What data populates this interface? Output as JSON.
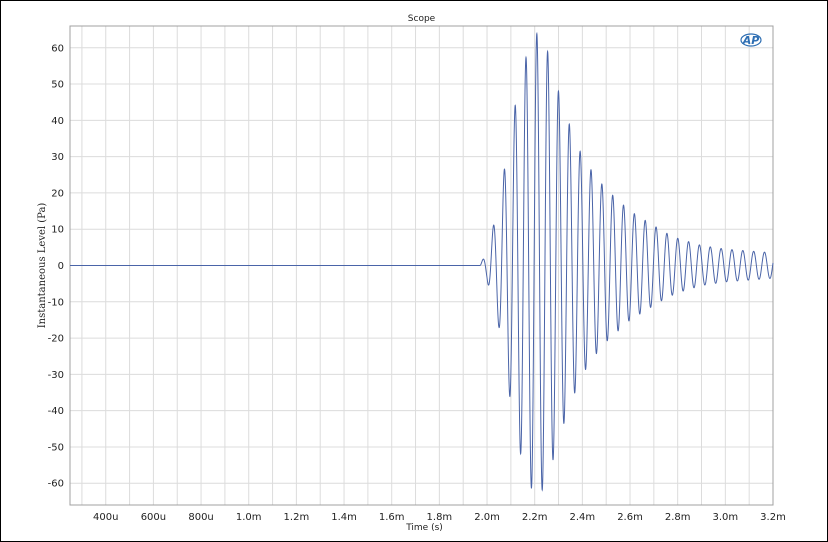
{
  "chart_data": {
    "type": "line",
    "title": "Scope",
    "xlabel": "Time (s)",
    "ylabel": "Instantaneous Level (Pa)",
    "logo_text": "AP",
    "xlim": [
      0.00025,
      0.0032
    ],
    "ylim": [
      -66,
      66
    ],
    "x_ticks": [
      {
        "value": 0.0004,
        "label": "400u"
      },
      {
        "value": 0.0006,
        "label": "600u"
      },
      {
        "value": 0.0008,
        "label": "800u"
      },
      {
        "value": 0.001,
        "label": "1.0m"
      },
      {
        "value": 0.0012,
        "label": "1.2m"
      },
      {
        "value": 0.0014,
        "label": "1.4m"
      },
      {
        "value": 0.0016,
        "label": "1.6m"
      },
      {
        "value": 0.0018,
        "label": "1.8m"
      },
      {
        "value": 0.002,
        "label": "2.0m"
      },
      {
        "value": 0.0022,
        "label": "2.2m"
      },
      {
        "value": 0.0024,
        "label": "2.4m"
      },
      {
        "value": 0.0026,
        "label": "2.6m"
      },
      {
        "value": 0.0028,
        "label": "2.8m"
      },
      {
        "value": 0.003,
        "label": "3.0m"
      },
      {
        "value": 0.0032,
        "label": "3.2m"
      }
    ],
    "y_ticks": [
      {
        "value": 60,
        "label": "60"
      },
      {
        "value": 50,
        "label": "50"
      },
      {
        "value": 40,
        "label": "40"
      },
      {
        "value": 30,
        "label": "30"
      },
      {
        "value": 20,
        "label": "20"
      },
      {
        "value": 10,
        "label": "10"
      },
      {
        "value": 0,
        "label": "0"
      },
      {
        "value": -10,
        "label": "-10"
      },
      {
        "value": -20,
        "label": "-20"
      },
      {
        "value": -30,
        "label": "-30"
      },
      {
        "value": -40,
        "label": "-40"
      },
      {
        "value": -50,
        "label": "-50"
      },
      {
        "value": -60,
        "label": "-60"
      }
    ],
    "grid": true,
    "x_minor_grid_step": 0.0001,
    "series": [
      {
        "color": "#4a64a8",
        "description_points": [
          {
            "x": 0.00025,
            "y": 0
          },
          {
            "x": 0.00197,
            "y": 0
          },
          {
            "x": 0.002,
            "y": 4
          },
          {
            "x": 0.00205,
            "y": 17
          },
          {
            "x": 0.0021,
            "y": 38
          },
          {
            "x": 0.00215,
            "y": 55
          },
          {
            "x": 0.00219,
            "y": 62
          },
          {
            "x": 0.00221,
            "y": 64
          },
          {
            "x": 0.00225,
            "y": 60
          },
          {
            "x": 0.0023,
            "y": 48
          },
          {
            "x": 0.00235,
            "y": 38
          },
          {
            "x": 0.0024,
            "y": 30
          },
          {
            "x": 0.00245,
            "y": 25
          },
          {
            "x": 0.0025,
            "y": 21
          },
          {
            "x": 0.00255,
            "y": 18
          },
          {
            "x": 0.0026,
            "y": 15
          },
          {
            "x": 0.00265,
            "y": 13
          },
          {
            "x": 0.0027,
            "y": 11
          },
          {
            "x": 0.00275,
            "y": 9
          },
          {
            "x": 0.0028,
            "y": 7.5
          },
          {
            "x": 0.00285,
            "y": 6.5
          },
          {
            "x": 0.0029,
            "y": 5.5
          },
          {
            "x": 0.003,
            "y": 4.5
          },
          {
            "x": 0.0031,
            "y": 4
          },
          {
            "x": 0.0032,
            "y": 3.5
          }
        ],
        "oscillation_period_s": 4.55e-05
      }
    ]
  }
}
